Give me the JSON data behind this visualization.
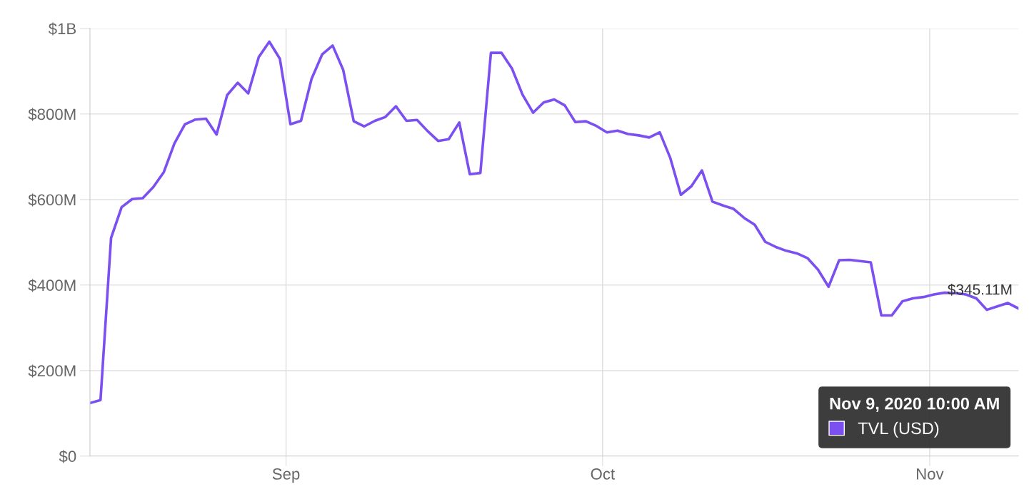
{
  "chart_data": {
    "type": "line",
    "x": [
      "2020-08-13T10:00",
      "2020-08-14T10:00",
      "2020-08-15T10:00",
      "2020-08-16T10:00",
      "2020-08-17T10:00",
      "2020-08-18T10:00",
      "2020-08-19T10:00",
      "2020-08-20T10:00",
      "2020-08-21T10:00",
      "2020-08-22T10:00",
      "2020-08-23T10:00",
      "2020-08-24T10:00",
      "2020-08-25T10:00",
      "2020-08-26T10:00",
      "2020-08-27T10:00",
      "2020-08-28T10:00",
      "2020-08-29T10:00",
      "2020-08-30T10:00",
      "2020-08-31T10:00",
      "2020-09-01T10:00",
      "2020-09-02T10:00",
      "2020-09-03T10:00",
      "2020-09-04T10:00",
      "2020-09-05T10:00",
      "2020-09-06T10:00",
      "2020-09-07T10:00",
      "2020-09-08T10:00",
      "2020-09-09T10:00",
      "2020-09-10T10:00",
      "2020-09-11T10:00",
      "2020-09-12T10:00",
      "2020-09-13T10:00",
      "2020-09-14T10:00",
      "2020-09-15T10:00",
      "2020-09-16T10:00",
      "2020-09-17T10:00",
      "2020-09-18T10:00",
      "2020-09-19T10:00",
      "2020-09-20T10:00",
      "2020-09-21T10:00",
      "2020-09-22T10:00",
      "2020-09-23T10:00",
      "2020-09-24T10:00",
      "2020-09-25T10:00",
      "2020-09-26T10:00",
      "2020-09-27T10:00",
      "2020-09-28T10:00",
      "2020-09-29T10:00",
      "2020-09-30T10:00",
      "2020-10-01T10:00",
      "2020-10-02T10:00",
      "2020-10-03T10:00",
      "2020-10-04T10:00",
      "2020-10-05T10:00",
      "2020-10-06T10:00",
      "2020-10-07T10:00",
      "2020-10-08T10:00",
      "2020-10-09T10:00",
      "2020-10-10T10:00",
      "2020-10-11T10:00",
      "2020-10-12T10:00",
      "2020-10-13T10:00",
      "2020-10-14T10:00",
      "2020-10-15T10:00",
      "2020-10-16T10:00",
      "2020-10-17T10:00",
      "2020-10-18T10:00",
      "2020-10-19T10:00",
      "2020-10-20T10:00",
      "2020-10-21T10:00",
      "2020-10-22T10:00",
      "2020-10-23T10:00",
      "2020-10-24T10:00",
      "2020-10-25T10:00",
      "2020-10-26T10:00",
      "2020-10-27T10:00",
      "2020-10-28T10:00",
      "2020-10-29T10:00",
      "2020-10-30T10:00",
      "2020-10-31T10:00",
      "2020-11-01T10:00",
      "2020-11-02T10:00",
      "2020-11-03T10:00",
      "2020-11-04T10:00",
      "2020-11-05T10:00",
      "2020-11-06T10:00",
      "2020-11-07T10:00",
      "2020-11-08T10:00",
      "2020-11-09T10:00"
    ],
    "series": [
      {
        "name": "TVL (USD)",
        "color": "#7b4ff0",
        "values": [
          124000000.0,
          131000000.0,
          510000000.0,
          582000000.0,
          601000000.0,
          603000000.0,
          629000000.0,
          664000000.0,
          731000000.0,
          776000000.0,
          787000000.0,
          789000000.0,
          752000000.0,
          844000000.0,
          873000000.0,
          848000000.0,
          933000000.0,
          969000000.0,
          929000000.0,
          776000000.0,
          784000000.0,
          882000000.0,
          939000000.0,
          960000000.0,
          903000000.0,
          783000000.0,
          771000000.0,
          784000000.0,
          793000000.0,
          818000000.0,
          784000000.0,
          786000000.0,
          760000000.0,
          737000000.0,
          741000000.0,
          780000000.0,
          659000000.0,
          662000000.0,
          943000000.0,
          943000000.0,
          906000000.0,
          845000000.0,
          803000000.0,
          827000000.0,
          834000000.0,
          820000000.0,
          781000000.0,
          783000000.0,
          772000000.0,
          757000000.0,
          761000000.0,
          753000000.0,
          750000000.0,
          745000000.0,
          757000000.0,
          697000000.0,
          611000000.0,
          631000000.0,
          668000000.0,
          595000000.0,
          586000000.0,
          578000000.0,
          557000000.0,
          541000000.0,
          501000000.0,
          489000000.0,
          480000000.0,
          474000000.0,
          463000000.0,
          436000000.0,
          396000000.0,
          458000000.0,
          459000000.0,
          456000000.0,
          453000000.0,
          329000000.0,
          329000000.0,
          362000000.0,
          369000000.0,
          372000000.0,
          378000000.0,
          382000000.0,
          381000000.0,
          378000000.0,
          369000000.0,
          342000000.0,
          350000000.0,
          358000000.0,
          345110000.0
        ],
        "value_labels": [
          null,
          null,
          null,
          null,
          null,
          null,
          null,
          null,
          null,
          null,
          null,
          null,
          null,
          null,
          null,
          null,
          null,
          null,
          null,
          null,
          null,
          null,
          null,
          null,
          null,
          null,
          null,
          null,
          null,
          null,
          null,
          null,
          null,
          null,
          null,
          null,
          null,
          null,
          null,
          null,
          null,
          null,
          null,
          null,
          null,
          null,
          null,
          null,
          null,
          null,
          null,
          null,
          null,
          null,
          null,
          null,
          null,
          null,
          null,
          null,
          null,
          null,
          null,
          null,
          null,
          null,
          null,
          null,
          null,
          null,
          null,
          null,
          null,
          null,
          null,
          null,
          null,
          null,
          null,
          null,
          null,
          null,
          null,
          null,
          null,
          null,
          null,
          null,
          "$345.11M"
        ]
      }
    ],
    "annotations": [
      "Nov 9, 2020 10:00 AM"
    ],
    "xlim": [
      "2020-08-13T10:00",
      "2020-11-09T10:00"
    ],
    "xticks": [
      {
        "value": "2020-09-01",
        "label": "Sep"
      },
      {
        "value": "2020-10-01",
        "label": "Oct"
      },
      {
        "value": "2020-11-01",
        "label": "Nov"
      }
    ],
    "ylim": [
      0,
      1000000000
    ],
    "yticks": [
      {
        "value": 0,
        "label": "$0"
      },
      {
        "value": 200000000,
        "label": "$200M"
      },
      {
        "value": 400000000,
        "label": "$400M"
      },
      {
        "value": 600000000,
        "label": "$600M"
      },
      {
        "value": 800000000,
        "label": "$800M"
      },
      {
        "value": 1000000000,
        "label": "$1B"
      }
    ],
    "grid": true,
    "legend": "bottom right",
    "marker": "none",
    "line_style": "solid"
  }
}
